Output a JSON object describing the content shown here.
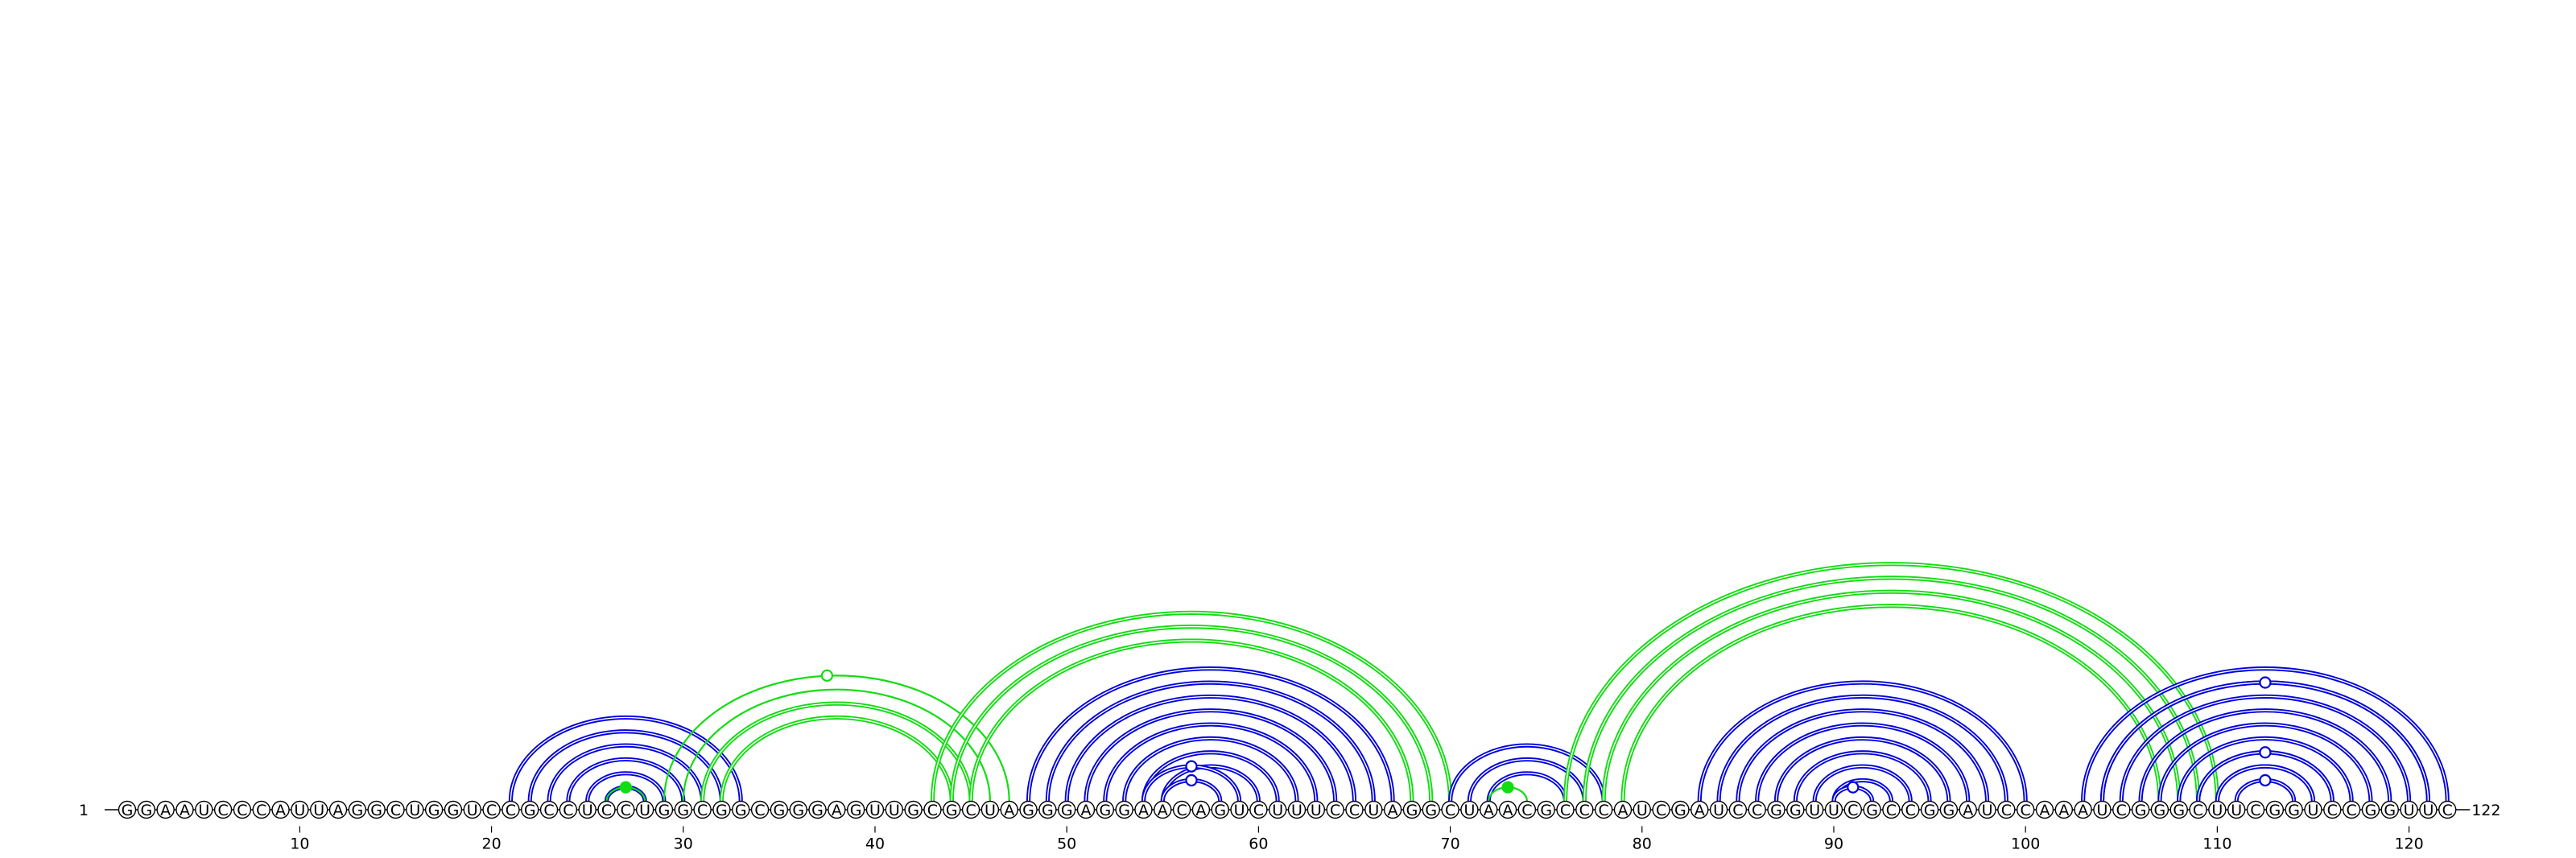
{
  "sequence": "GGAAUCCCAUUAGGCUGGUCCGCCUCCUGGCGGCGGGAGUUGCGCUAGGGAGGAACAGUCUUUCCUAGGCUAACGCCCAUCGAUCCGGUUCGCCGGAUCCAAAUCGGGCUUCGGUCCGGUUC",
  "start_label": "1",
  "end_label": "122",
  "ticks": [
    {
      "pos": 10,
      "label": "10"
    },
    {
      "pos": 20,
      "label": "20"
    },
    {
      "pos": 30,
      "label": "30"
    },
    {
      "pos": 40,
      "label": "40"
    },
    {
      "pos": 50,
      "label": "50"
    },
    {
      "pos": 60,
      "label": "60"
    },
    {
      "pos": 70,
      "label": "70"
    },
    {
      "pos": 80,
      "label": "80"
    },
    {
      "pos": 90,
      "label": "90"
    },
    {
      "pos": 100,
      "label": "100"
    },
    {
      "pos": 110,
      "label": "110"
    },
    {
      "pos": 120,
      "label": "120"
    }
  ],
  "colors": {
    "blue": "#0000dd",
    "green": "#11dd11"
  },
  "arc_groups": [
    {
      "name": "helix-21-33",
      "color": "blue",
      "weight": "double",
      "pairs": [
        [
          21,
          33
        ],
        [
          22,
          32
        ],
        [
          23,
          31
        ],
        [
          24,
          30
        ],
        [
          25,
          29
        ],
        [
          26,
          28
        ]
      ]
    },
    {
      "name": "helix-26-28-green",
      "color": "green",
      "weight": "single",
      "pairs": [
        [
          26,
          28
        ]
      ],
      "marker": {
        "pos": 27,
        "filled": true
      }
    },
    {
      "name": "pk-29-47",
      "color": "green",
      "weight": "single",
      "pairs": [
        [
          29,
          47
        ],
        [
          30,
          46
        ]
      ],
      "marker": {
        "pos": 37.5,
        "filled": false
      }
    },
    {
      "name": "pk-31-45",
      "color": "green",
      "weight": "double",
      "pairs": [
        [
          31,
          45
        ],
        [
          32,
          44
        ]
      ]
    },
    {
      "name": "pk-43-70",
      "color": "green",
      "weight": "double",
      "pairs": [
        [
          43,
          70
        ],
        [
          44,
          69
        ],
        [
          45,
          68
        ]
      ]
    },
    {
      "name": "helix-48-67",
      "color": "blue",
      "weight": "double",
      "pairs": [
        [
          48,
          67
        ],
        [
          49,
          66
        ],
        [
          50,
          65
        ],
        [
          51,
          64
        ],
        [
          52,
          63
        ],
        [
          53,
          62
        ],
        [
          54,
          61
        ],
        [
          55,
          60
        ]
      ]
    },
    {
      "name": "helix-inner-56",
      "color": "blue",
      "weight": "double",
      "pairs": [
        [
          55,
          58
        ]
      ],
      "marker": {
        "pos": 56.5,
        "filled": false
      }
    },
    {
      "name": "helix-inner-56b",
      "color": "blue",
      "weight": "double",
      "pairs": [
        [
          54,
          59
        ]
      ],
      "marker": {
        "pos": 56.5,
        "filled": false
      }
    },
    {
      "name": "helix-70-78",
      "color": "blue",
      "weight": "double",
      "pairs": [
        [
          70,
          78
        ],
        [
          71,
          77
        ],
        [
          72,
          76
        ]
      ]
    },
    {
      "name": "helix-72-74-green",
      "color": "green",
      "weight": "single",
      "pairs": [
        [
          72,
          74
        ]
      ],
      "marker": {
        "pos": 73,
        "filled": true
      }
    },
    {
      "name": "pk-76-110",
      "color": "green",
      "weight": "double",
      "pairs": [
        [
          76,
          110
        ],
        [
          77,
          109
        ],
        [
          78,
          108
        ],
        [
          79,
          107
        ]
      ]
    },
    {
      "name": "helix-83-100",
      "color": "blue",
      "weight": "double",
      "pairs": [
        [
          83,
          100
        ],
        [
          84,
          99
        ],
        [
          85,
          98
        ],
        [
          86,
          97
        ],
        [
          87,
          96
        ],
        [
          88,
          95
        ],
        [
          89,
          94
        ],
        [
          90,
          93
        ]
      ]
    },
    {
      "name": "helix-inner-91",
      "color": "blue",
      "weight": "double",
      "pairs": [
        [
          90,
          92
        ]
      ],
      "marker": {
        "pos": 91,
        "filled": false
      }
    },
    {
      "name": "helix-103-122",
      "color": "blue",
      "weight": "double",
      "pairs": [
        [
          103,
          122
        ],
        [
          104,
          121
        ],
        [
          105,
          120
        ],
        [
          106,
          119
        ],
        [
          107,
          118
        ],
        [
          108,
          117
        ],
        [
          109,
          116
        ],
        [
          110,
          115
        ]
      ]
    },
    {
      "name": "helix-inner-112",
      "color": "blue",
      "weight": "double",
      "pairs": [
        [
          111,
          114
        ],
        [
          110,
          115
        ]
      ],
      "marker": {
        "pos": 112.5,
        "filled": false
      }
    },
    {
      "name": "helix-inner-112b",
      "color": "blue",
      "weight": "double",
      "pairs": [
        [
          109,
          116
        ]
      ],
      "marker": {
        "pos": 112.5,
        "filled": false
      }
    },
    {
      "name": "helix-inner-112c",
      "color": "blue",
      "weight": "double",
      "pairs": [
        [
          104,
          121
        ]
      ],
      "marker": {
        "pos": 112.5,
        "filled": false
      }
    }
  ]
}
